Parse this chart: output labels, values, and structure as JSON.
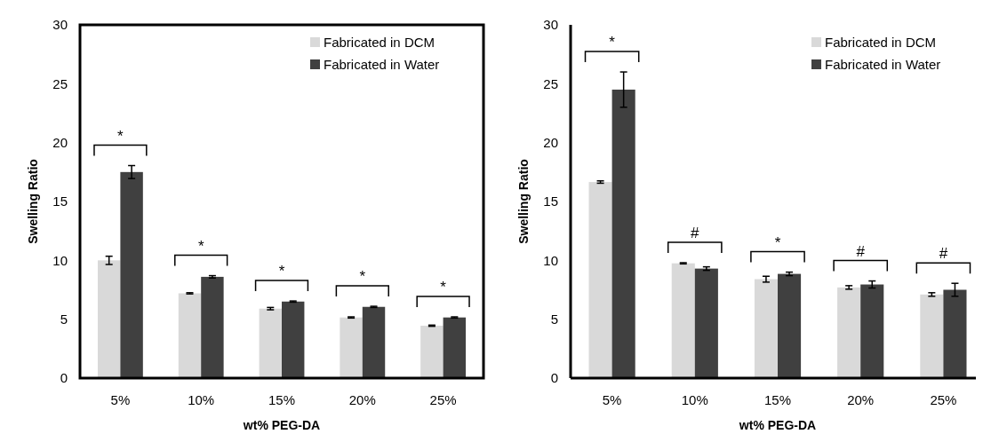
{
  "chart_data": [
    {
      "type": "bar",
      "xlabel": "wt% PEG-DA",
      "ylabel": "Swelling Ratio",
      "categories": [
        "5%",
        "10%",
        "15%",
        "20%",
        "25%"
      ],
      "ylim": [
        0,
        30
      ],
      "yticks": [
        0,
        5,
        10,
        15,
        20,
        25,
        30
      ],
      "grid": false,
      "legend": "top right",
      "series": [
        {
          "name": "Fabricated in DCM",
          "color": "#d9d9d9",
          "values": [
            10.0,
            7.2,
            5.9,
            5.15,
            4.45
          ],
          "errors": [
            0.35,
            0.05,
            0.1,
            0.05,
            0.05
          ]
        },
        {
          "name": "Fabricated in Water",
          "color": "#404040",
          "values": [
            17.5,
            8.6,
            6.5,
            6.05,
            5.15
          ],
          "errors": [
            0.55,
            0.1,
            0.05,
            0.05,
            0.05
          ]
        }
      ],
      "annotations": [
        "*",
        "*",
        "*",
        "*",
        "*"
      ]
    },
    {
      "type": "bar",
      "xlabel": "wt% PEG-DA",
      "ylabel": "Swelling Ratio",
      "categories": [
        "5%",
        "10%",
        "15%",
        "20%",
        "25%"
      ],
      "ylim": [
        0,
        30
      ],
      "yticks": [
        0,
        5,
        10,
        15,
        20,
        25,
        30
      ],
      "grid": false,
      "legend": "top right",
      "series": [
        {
          "name": "Fabricated in DCM",
          "color": "#d9d9d9",
          "values": [
            16.65,
            9.75,
            8.4,
            7.7,
            7.1
          ],
          "errors": [
            0.1,
            0.05,
            0.25,
            0.15,
            0.15
          ]
        },
        {
          "name": "Fabricated in Water",
          "color": "#404040",
          "values": [
            24.5,
            9.3,
            8.85,
            7.95,
            7.5
          ],
          "errors": [
            1.5,
            0.15,
            0.15,
            0.3,
            0.55
          ]
        }
      ],
      "annotations": [
        "*",
        "#",
        "*",
        "#",
        "#"
      ]
    }
  ]
}
